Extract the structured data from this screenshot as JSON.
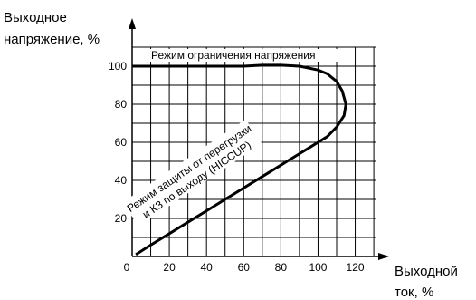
{
  "chart_data": {
    "type": "line",
    "xlabel_lines": [
      "Выходной",
      "ток, %"
    ],
    "ylabel_lines": [
      "Выходное",
      "напряжение, %"
    ],
    "xlim": [
      0,
      140
    ],
    "ylim": [
      0,
      110
    ],
    "x_ticks": [
      0,
      20,
      40,
      60,
      80,
      100,
      120
    ],
    "y_ticks": [
      20,
      40,
      60,
      80,
      100
    ],
    "grid": true,
    "series": [
      {
        "x": [
          0,
          10,
          20,
          30,
          40,
          50,
          60,
          70,
          80,
          90,
          100,
          105,
          110,
          113,
          115,
          114,
          110,
          105,
          100,
          95,
          90,
          85,
          80,
          70,
          60,
          50,
          40,
          30,
          20,
          10,
          2
        ],
        "y": [
          100,
          100,
          100,
          100,
          100,
          100,
          100,
          100.5,
          100.5,
          100,
          98,
          96,
          92,
          87,
          80,
          74,
          68,
          63,
          60,
          57,
          54,
          51,
          48,
          42,
          36,
          30,
          24,
          18,
          12,
          6,
          1
        ]
      }
    ],
    "annotations": {
      "voltage_limit": "Режим ограничения напряжения",
      "protection_line1": "Режим защиты от перегрузки",
      "protection_line2": "и КЗ по выходу (HICCUP)"
    }
  }
}
